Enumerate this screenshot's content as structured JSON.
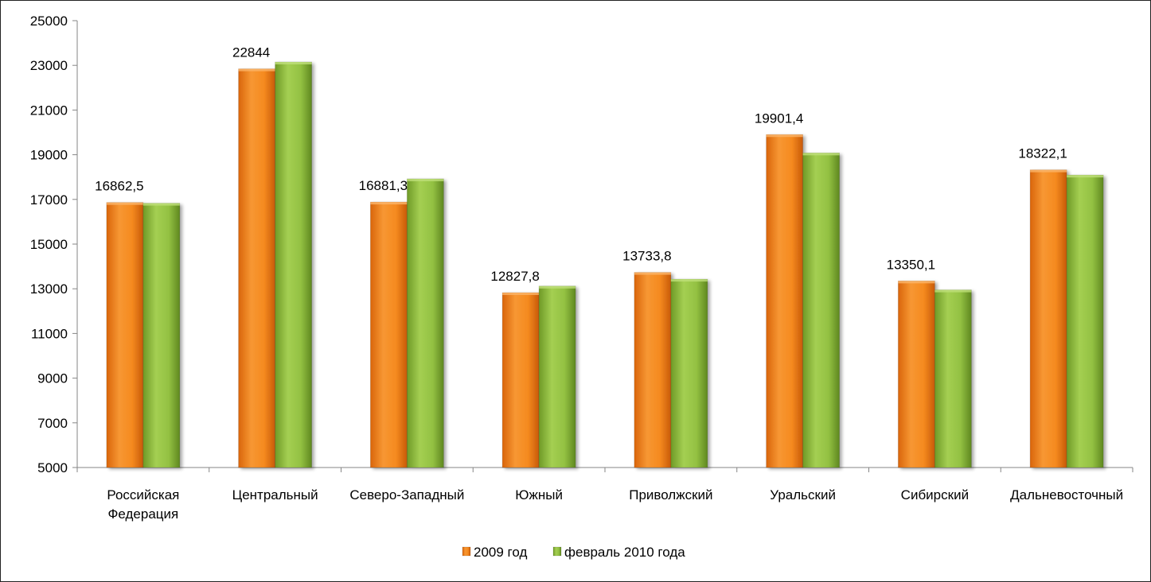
{
  "chart_data": {
    "type": "bar",
    "categories": [
      "Российская Федерация",
      "Центральный",
      "Северо-Западный",
      "Южный",
      "Приволжский",
      "Уральский",
      "Сибирский",
      "Дальневосточный"
    ],
    "series": [
      {
        "name": "2009 год",
        "color": "#f28a1e",
        "values": [
          16862.5,
          22844,
          16881.3,
          12827.8,
          13733.8,
          19901.4,
          13350.1,
          18322.1
        ],
        "data_labels": [
          "16862,5",
          "22844",
          "16881,3",
          "12827,8",
          "13733,8",
          "19901,4",
          "13350,1",
          "18322,1"
        ]
      },
      {
        "name": "февраль 2010 года",
        "color": "#8cbc3c",
        "values": [
          16830,
          23150,
          17920,
          13120,
          13430,
          19080,
          12950,
          18090
        ]
      }
    ],
    "ylim": [
      5000,
      25000
    ],
    "yticks": [
      "5000",
      "7000",
      "9000",
      "11000",
      "13000",
      "15000",
      "17000",
      "19000",
      "21000",
      "23000",
      "25000"
    ],
    "xlabel": "",
    "ylabel": "",
    "grid": false,
    "legend": "bottom"
  }
}
